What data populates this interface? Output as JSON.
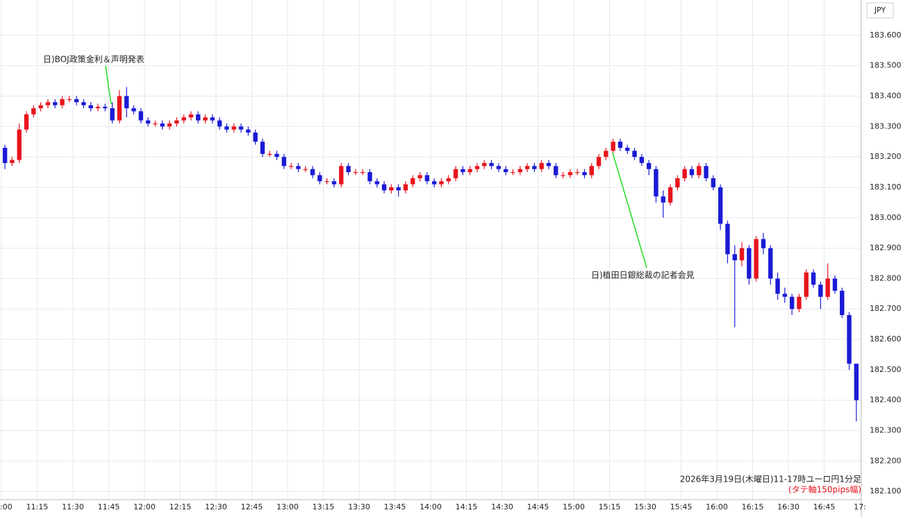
{
  "chart_data": {
    "type": "candlestick",
    "axis_label": "JPY",
    "footnote": "2026年3月19日(木曜日)11-17時ユーロ円1分足",
    "footnote2": "(タテ軸150pips幅)",
    "annotations": [
      {
        "text": "日)BOJ政策金利＆声明発表"
      },
      {
        "text": "日)植田日銀総裁の記者会見"
      }
    ],
    "up_color": "#e8141c",
    "down_color": "#1a1ad6",
    "annotation_color": "#22dd22",
    "grid": true,
    "xlim": [
      0,
      120
    ],
    "xticks": [
      {
        "value": 0,
        "label": ":00"
      },
      {
        "value": 5,
        "label": "11:15"
      },
      {
        "value": 10,
        "label": "11:30"
      },
      {
        "value": 15,
        "label": "11:45"
      },
      {
        "value": 20,
        "label": "12:00"
      },
      {
        "value": 25,
        "label": "12:15"
      },
      {
        "value": 30,
        "label": "12:30"
      },
      {
        "value": 35,
        "label": "12:45"
      },
      {
        "value": 40,
        "label": "13:00"
      },
      {
        "value": 45,
        "label": "13:15"
      },
      {
        "value": 50,
        "label": "13:30"
      },
      {
        "value": 55,
        "label": "13:45"
      },
      {
        "value": 60,
        "label": "14:00"
      },
      {
        "value": 65,
        "label": "14:15"
      },
      {
        "value": 70,
        "label": "14:30"
      },
      {
        "value": 75,
        "label": "14:45"
      },
      {
        "value": 80,
        "label": "15:00"
      },
      {
        "value": 85,
        "label": "15:15"
      },
      {
        "value": 90,
        "label": "15:30"
      },
      {
        "value": 95,
        "label": "15:45"
      },
      {
        "value": 100,
        "label": "16:00"
      },
      {
        "value": 105,
        "label": "16:15"
      },
      {
        "value": 110,
        "label": "16:30"
      },
      {
        "value": 115,
        "label": "16:45"
      },
      {
        "value": 120,
        "label": "17:"
      }
    ],
    "ylim": [
      182.073,
      183.716
    ],
    "yticks": [
      {
        "value": 182.1,
        "label": "182.100"
      },
      {
        "value": 182.2,
        "label": "182.200"
      },
      {
        "value": 182.3,
        "label": "182.300"
      },
      {
        "value": 182.4,
        "label": "182.400"
      },
      {
        "value": 182.5,
        "label": "182.500"
      },
      {
        "value": 182.6,
        "label": "182.600"
      },
      {
        "value": 182.7,
        "label": "182.700"
      },
      {
        "value": 182.8,
        "label": "182.800"
      },
      {
        "value": 182.9,
        "label": "182.900"
      },
      {
        "value": 183.0,
        "label": "183.000"
      },
      {
        "value": 183.1,
        "label": "183.100"
      },
      {
        "value": 183.2,
        "label": "183.200"
      },
      {
        "value": 183.3,
        "label": "183.300"
      },
      {
        "value": 183.4,
        "label": "183.400"
      },
      {
        "value": 183.5,
        "label": "183.500"
      },
      {
        "value": 183.6,
        "label": "183.600"
      }
    ],
    "open": [
      183.23,
      183.18,
      183.19,
      183.29,
      183.34,
      183.36,
      183.37,
      183.38,
      183.37,
      183.39,
      183.39,
      183.38,
      183.37,
      183.36,
      183.365,
      183.36,
      183.32,
      183.4,
      183.36,
      183.35,
      183.32,
      183.31,
      183.31,
      183.3,
      183.31,
      183.32,
      183.33,
      183.34,
      183.32,
      183.33,
      183.32,
      183.3,
      183.29,
      183.3,
      183.29,
      183.28,
      183.25,
      183.21,
      183.21,
      183.2,
      183.17,
      183.17,
      183.16,
      183.16,
      183.14,
      183.12,
      183.12,
      183.11,
      183.17,
      183.15,
      183.15,
      183.15,
      183.12,
      183.11,
      183.09,
      183.1,
      183.09,
      183.11,
      183.13,
      183.14,
      183.12,
      183.11,
      183.12,
      183.13,
      183.16,
      183.15,
      183.16,
      183.17,
      183.18,
      183.17,
      183.16,
      183.15,
      183.15,
      183.16,
      183.17,
      183.16,
      183.18,
      183.17,
      183.14,
      183.14,
      183.15,
      183.15,
      183.14,
      183.17,
      183.2,
      183.22,
      183.25,
      183.23,
      183.22,
      183.2,
      183.18,
      183.16,
      183.07,
      183.05,
      183.1,
      183.13,
      183.16,
      183.14,
      183.17,
      183.13,
      183.1,
      182.98,
      182.88,
      182.86,
      182.9,
      182.8,
      182.93,
      182.9,
      182.8,
      182.75,
      182.74,
      182.7,
      182.74,
      182.82,
      182.78,
      182.74,
      182.8,
      182.76,
      182.68,
      182.52
    ],
    "high": [
      183.24,
      183.2,
      183.31,
      183.35,
      183.37,
      183.38,
      183.39,
      183.39,
      183.4,
      183.4,
      183.4,
      183.39,
      183.38,
      183.375,
      183.375,
      183.38,
      183.42,
      183.43,
      183.37,
      183.36,
      183.33,
      183.32,
      183.32,
      183.32,
      183.33,
      183.34,
      183.35,
      183.35,
      183.34,
      183.34,
      183.33,
      183.31,
      183.31,
      183.31,
      183.3,
      183.29,
      183.26,
      183.22,
      183.22,
      183.21,
      183.18,
      183.18,
      183.17,
      183.17,
      183.15,
      183.13,
      183.13,
      183.18,
      183.18,
      183.16,
      183.16,
      183.16,
      183.13,
      183.12,
      183.11,
      183.11,
      183.12,
      183.14,
      183.15,
      183.15,
      183.13,
      183.13,
      183.14,
      183.17,
      183.17,
      183.17,
      183.18,
      183.19,
      183.19,
      183.18,
      183.17,
      183.16,
      183.17,
      183.18,
      183.18,
      183.19,
      183.19,
      183.18,
      183.15,
      183.16,
      183.16,
      183.16,
      183.18,
      183.21,
      183.23,
      183.26,
      183.26,
      183.24,
      183.23,
      183.21,
      183.19,
      183.17,
      183.09,
      183.11,
      183.14,
      183.17,
      183.17,
      183.18,
      183.18,
      183.14,
      183.11,
      182.99,
      182.91,
      182.92,
      182.91,
      182.94,
      182.95,
      182.91,
      182.82,
      182.77,
      182.75,
      182.75,
      182.83,
      182.83,
      182.79,
      182.85,
      182.81,
      182.77,
      182.69,
      182.52
    ],
    "low": [
      183.16,
      183.17,
      183.18,
      183.28,
      183.33,
      183.35,
      183.36,
      183.36,
      183.36,
      183.38,
      183.37,
      183.36,
      183.35,
      183.35,
      183.35,
      183.31,
      183.31,
      183.33,
      183.34,
      183.31,
      183.3,
      183.3,
      183.29,
      183.29,
      183.3,
      183.31,
      183.32,
      183.31,
      183.31,
      183.31,
      183.29,
      183.28,
      183.28,
      183.28,
      183.27,
      183.24,
      183.2,
      183.2,
      183.19,
      183.16,
      183.16,
      183.15,
      183.15,
      183.13,
      183.11,
      183.11,
      183.1,
      183.1,
      183.14,
      183.14,
      183.14,
      183.11,
      183.1,
      183.08,
      183.08,
      183.07,
      183.08,
      183.1,
      183.12,
      183.11,
      183.1,
      183.1,
      183.11,
      183.12,
      183.14,
      183.14,
      183.15,
      183.16,
      183.16,
      183.15,
      183.14,
      183.14,
      183.14,
      183.15,
      183.15,
      183.15,
      183.16,
      183.13,
      183.13,
      183.13,
      183.14,
      183.13,
      183.13,
      183.16,
      183.19,
      183.21,
      183.22,
      183.21,
      183.19,
      183.17,
      183.14,
      183.05,
      183.0,
      183.04,
      183.09,
      183.12,
      183.13,
      183.13,
      183.12,
      183.09,
      182.96,
      182.85,
      182.64,
      182.84,
      182.78,
      182.79,
      182.88,
      182.78,
      182.73,
      182.72,
      182.68,
      182.69,
      182.73,
      182.77,
      182.7,
      182.73,
      182.75,
      182.67,
      182.5,
      182.33
    ],
    "close": [
      183.18,
      183.19,
      183.29,
      183.34,
      183.36,
      183.37,
      183.38,
      183.37,
      183.39,
      183.39,
      183.38,
      183.37,
      183.36,
      183.365,
      183.36,
      183.32,
      183.4,
      183.36,
      183.35,
      183.32,
      183.31,
      183.31,
      183.3,
      183.31,
      183.32,
      183.33,
      183.34,
      183.32,
      183.33,
      183.32,
      183.3,
      183.29,
      183.3,
      183.29,
      183.28,
      183.25,
      183.21,
      183.21,
      183.2,
      183.17,
      183.17,
      183.16,
      183.16,
      183.14,
      183.12,
      183.12,
      183.11,
      183.17,
      183.15,
      183.15,
      183.15,
      183.12,
      183.11,
      183.09,
      183.1,
      183.09,
      183.11,
      183.13,
      183.14,
      183.12,
      183.11,
      183.12,
      183.13,
      183.16,
      183.15,
      183.16,
      183.17,
      183.18,
      183.17,
      183.16,
      183.15,
      183.15,
      183.16,
      183.17,
      183.16,
      183.18,
      183.17,
      183.14,
      183.14,
      183.15,
      183.15,
      183.14,
      183.17,
      183.2,
      183.22,
      183.25,
      183.23,
      183.22,
      183.2,
      183.18,
      183.16,
      183.07,
      183.05,
      183.1,
      183.13,
      183.16,
      183.14,
      183.17,
      183.13,
      183.1,
      182.98,
      182.88,
      182.86,
      182.9,
      182.8,
      182.93,
      182.9,
      182.8,
      182.75,
      182.74,
      182.7,
      182.74,
      182.82,
      182.78,
      182.74,
      182.8,
      182.76,
      182.68,
      182.52,
      182.4
    ]
  }
}
